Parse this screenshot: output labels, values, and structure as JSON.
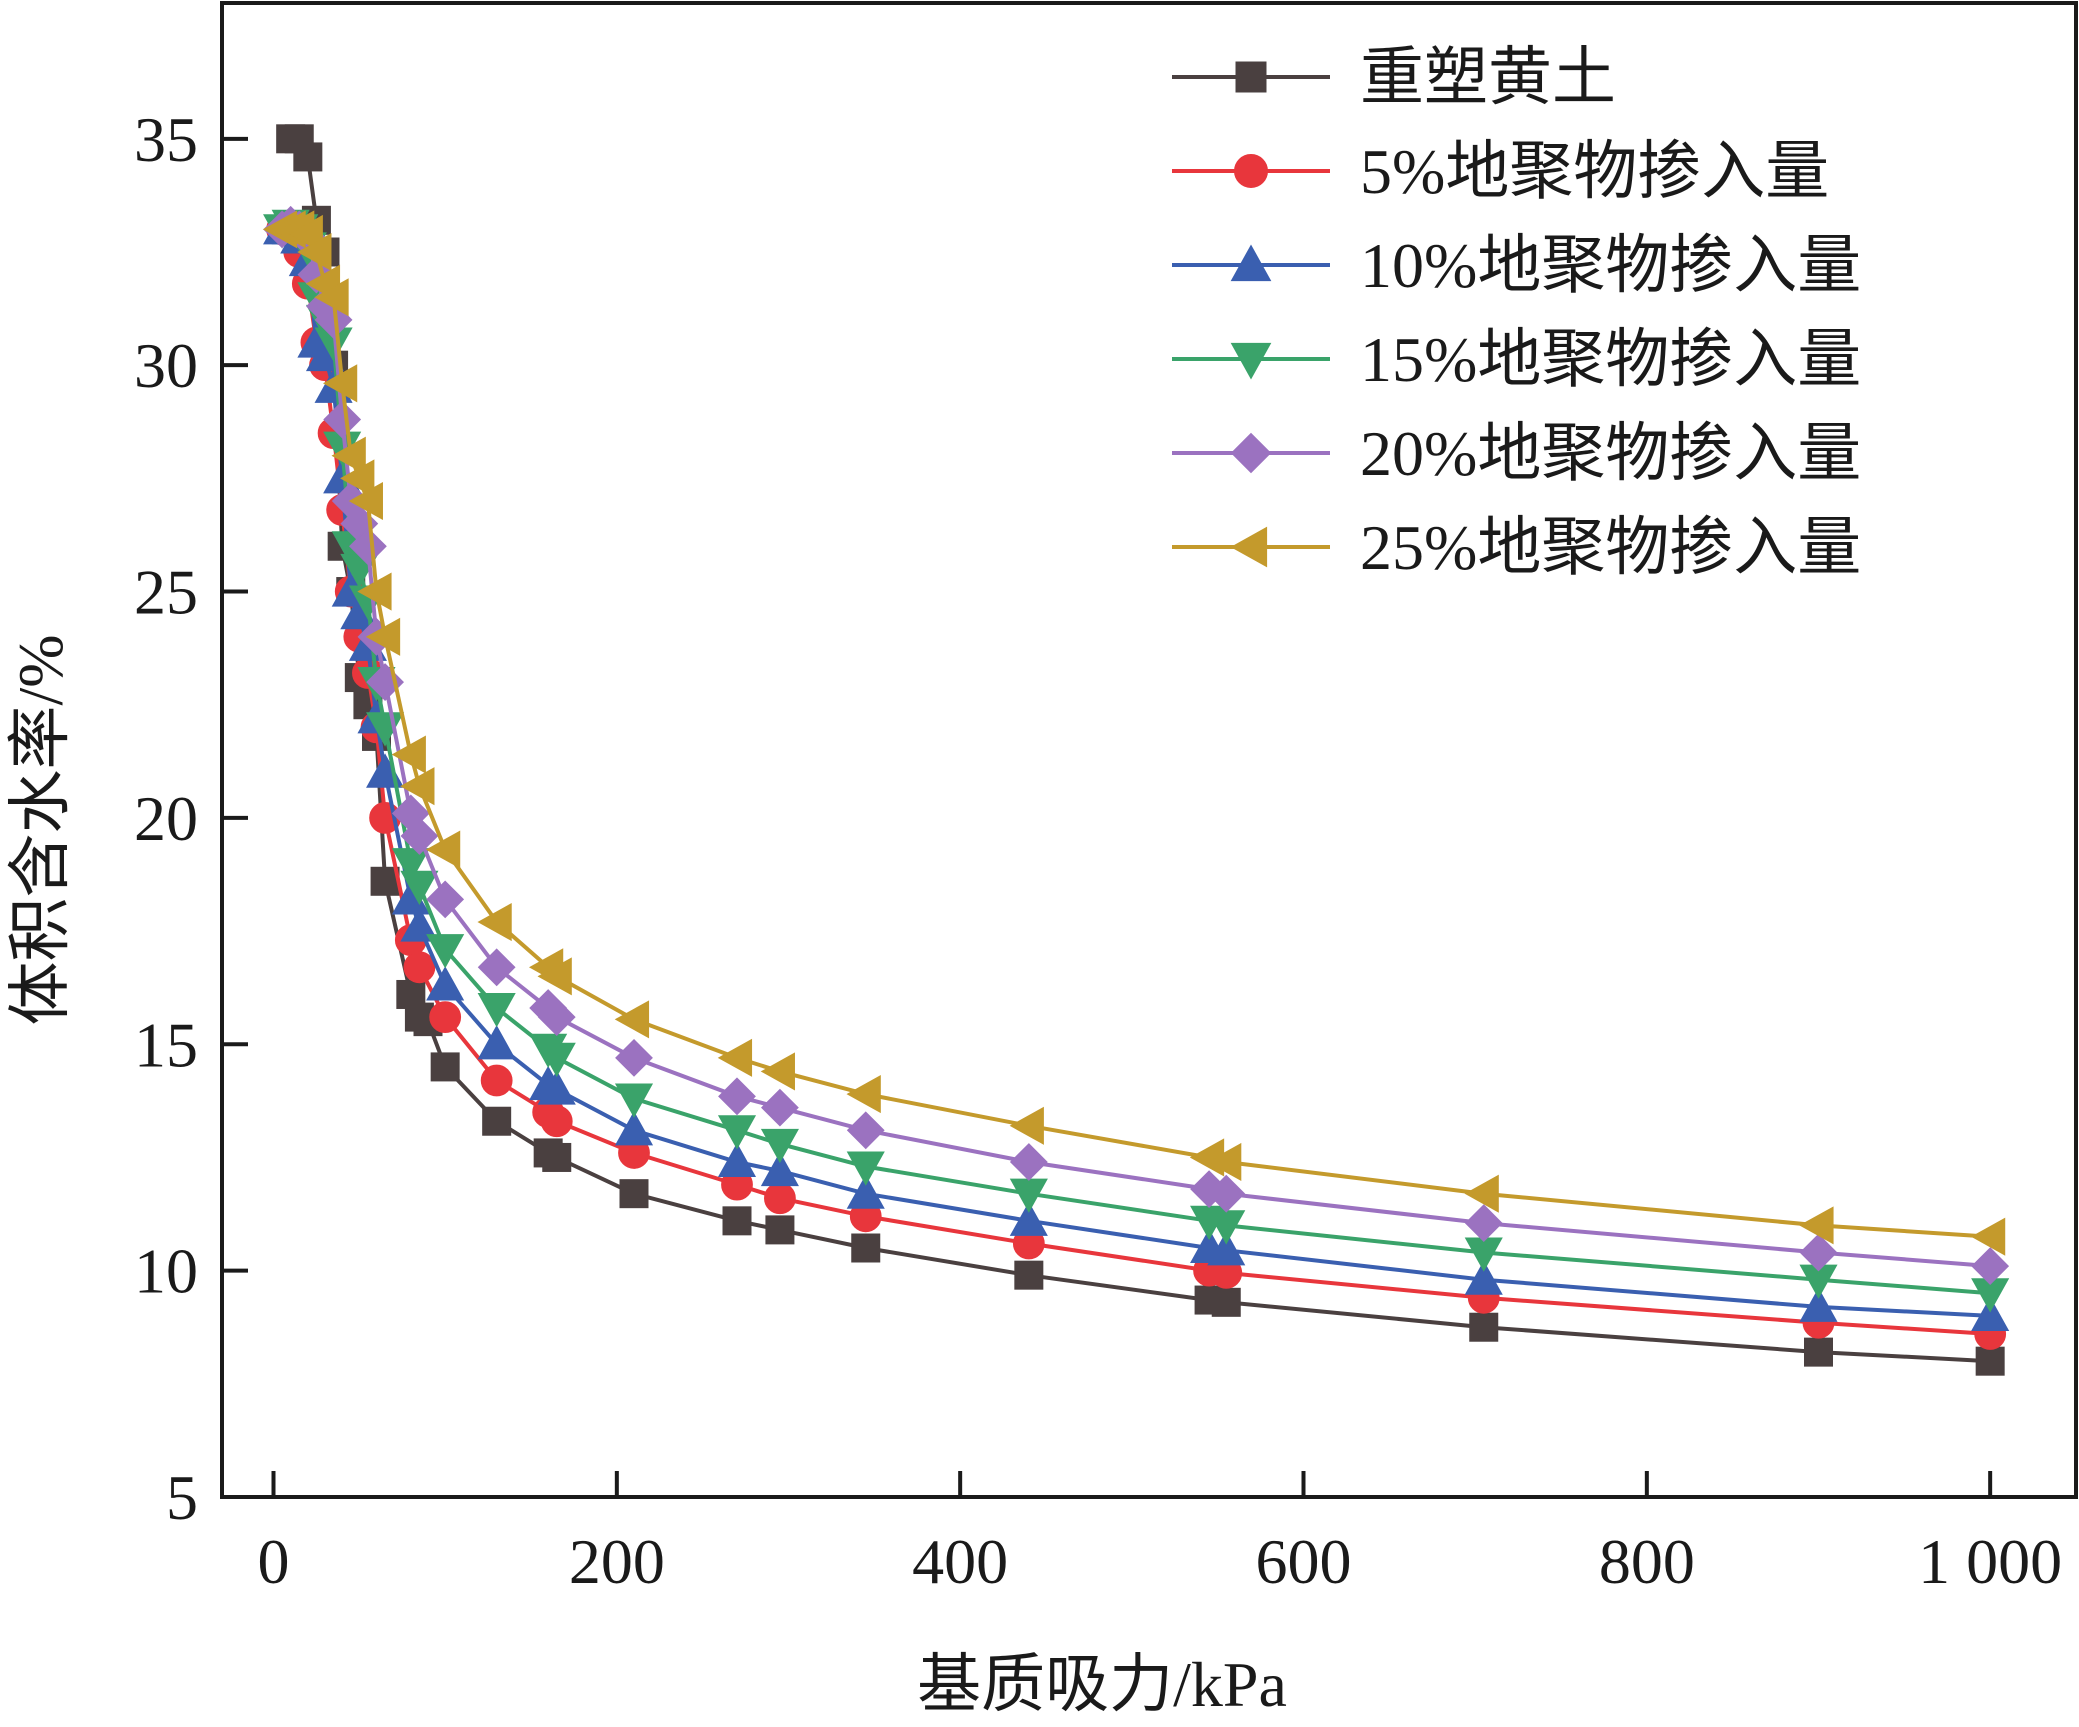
{
  "chart_data": {
    "type": "line",
    "xlabel": "基质吸力/kPa",
    "ylabel": "体积含水率/%",
    "xlim": [
      -30,
      1050
    ],
    "ylim": [
      5,
      38
    ],
    "xticks": [
      0,
      200,
      400,
      600,
      800,
      1000
    ],
    "xtick_labels": [
      "0",
      "200",
      "400",
      "600",
      "800",
      "1 000"
    ],
    "yticks": [
      5,
      10,
      15,
      20,
      25,
      30,
      35
    ],
    "ytick_labels": [
      "5",
      "10",
      "15",
      "20",
      "25",
      "30",
      "35"
    ],
    "grid": false,
    "legend_position": "top-right",
    "series": [
      {
        "name": "重塑黄土",
        "color": "#4a4040",
        "marker": "square",
        "x": [
          10,
          15,
          20,
          25,
          30,
          35,
          40,
          45,
          50,
          55,
          60,
          65,
          80,
          85,
          90,
          100,
          130,
          160,
          165,
          210,
          270,
          295,
          345,
          440,
          545,
          555,
          705,
          900,
          1000
        ],
        "y": [
          35,
          35,
          34.6,
          33.2,
          32.5,
          30,
          26,
          25,
          23.1,
          22.5,
          21.8,
          18.6,
          16.1,
          15.6,
          15.5,
          14.5,
          13.3,
          12.6,
          12.5,
          11.7,
          11.1,
          10.9,
          10.5,
          9.9,
          9.35,
          9.3,
          8.75,
          8.2,
          8.0
        ]
      },
      {
        "name": "5%地聚物掺入量",
        "color": "#e8363c",
        "marker": "circle",
        "x": [
          5,
          10,
          15,
          20,
          25,
          30,
          35,
          40,
          45,
          50,
          55,
          60,
          65,
          80,
          85,
          100,
          130,
          160,
          165,
          210,
          270,
          295,
          345,
          440,
          545,
          555,
          705,
          900,
          1000
        ],
        "y": [
          33,
          33,
          32.5,
          31.8,
          30.5,
          30,
          28.5,
          26.8,
          25,
          24,
          23.2,
          22,
          20,
          17.3,
          16.7,
          15.6,
          14.2,
          13.5,
          13.3,
          12.6,
          11.9,
          11.6,
          11.2,
          10.6,
          10.0,
          9.95,
          9.4,
          8.85,
          8.6
        ]
      },
      {
        "name": "10%地聚物掺入量",
        "color": "#3a5fb0",
        "marker": "triangle-up",
        "x": [
          5,
          10,
          15,
          20,
          25,
          30,
          35,
          40,
          45,
          50,
          55,
          60,
          65,
          80,
          85,
          100,
          130,
          160,
          165,
          210,
          270,
          295,
          345,
          440,
          545,
          555,
          705,
          900,
          1000
        ],
        "y": [
          33,
          33,
          32.8,
          32.3,
          30.5,
          30.2,
          29.5,
          27.5,
          25,
          24.5,
          23.8,
          22.2,
          21,
          18.2,
          17.6,
          16.3,
          15,
          14.1,
          14,
          13.1,
          12.4,
          12.2,
          11.7,
          11.1,
          10.5,
          10.45,
          9.8,
          9.2,
          9.0
        ]
      },
      {
        "name": "15%地聚物掺入量",
        "color": "#3aa36a",
        "marker": "triangle-down",
        "x": [
          5,
          10,
          15,
          20,
          25,
          30,
          35,
          40,
          45,
          50,
          55,
          60,
          65,
          80,
          85,
          100,
          130,
          160,
          165,
          210,
          270,
          295,
          345,
          440,
          545,
          555,
          705,
          900,
          1000
        ],
        "y": [
          33,
          33.1,
          33,
          32.6,
          31.5,
          31,
          30.5,
          28.2,
          26,
          25.5,
          24.8,
          23,
          22,
          19,
          18.5,
          17.1,
          15.8,
          14.9,
          14.7,
          13.8,
          13.1,
          12.8,
          12.3,
          11.7,
          11.1,
          11.0,
          10.4,
          9.8,
          9.5
        ]
      },
      {
        "name": "20%地聚物掺入量",
        "color": "#9b72c0",
        "marker": "diamond",
        "x": [
          5,
          10,
          15,
          20,
          25,
          30,
          35,
          40,
          45,
          50,
          55,
          60,
          65,
          80,
          85,
          100,
          130,
          160,
          165,
          210,
          270,
          295,
          345,
          440,
          545,
          555,
          705,
          900,
          1000
        ],
        "y": [
          33,
          33.1,
          33,
          32.8,
          32,
          31.3,
          31,
          28.8,
          27,
          26.5,
          26,
          24,
          23,
          20.1,
          19.6,
          18.2,
          16.7,
          15.8,
          15.6,
          14.7,
          13.85,
          13.6,
          13.1,
          12.4,
          11.8,
          11.7,
          11.05,
          10.4,
          10.1
        ]
      },
      {
        "name": "25%地聚物掺入量",
        "color": "#c49a2c",
        "marker": "triangle-left",
        "x": [
          5,
          10,
          15,
          20,
          25,
          30,
          35,
          40,
          45,
          50,
          55,
          60,
          65,
          80,
          85,
          100,
          130,
          160,
          165,
          210,
          270,
          295,
          345,
          440,
          545,
          555,
          705,
          900,
          1000
        ],
        "y": [
          33,
          33,
          33,
          32.9,
          32.5,
          31.8,
          31.5,
          29.6,
          28,
          27.5,
          27,
          25,
          24,
          21.4,
          20.7,
          19.3,
          17.7,
          16.7,
          16.5,
          15.55,
          14.7,
          14.4,
          13.9,
          13.2,
          12.5,
          12.4,
          11.7,
          11.0,
          10.75
        ]
      }
    ]
  }
}
